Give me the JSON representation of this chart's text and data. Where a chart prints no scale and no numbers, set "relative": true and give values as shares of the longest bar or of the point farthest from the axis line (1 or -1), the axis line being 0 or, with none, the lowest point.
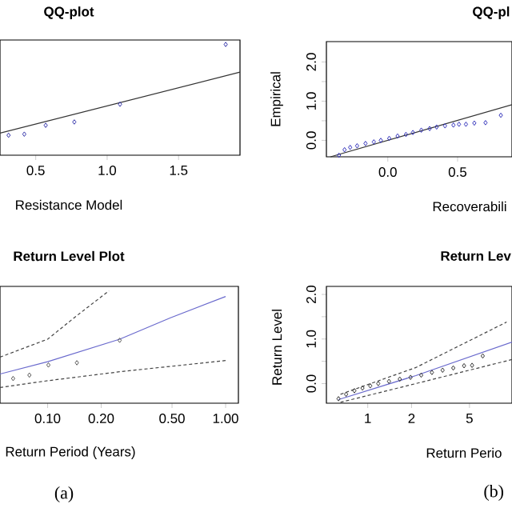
{
  "chart_data": [
    {
      "type": "scatter",
      "title": "QQ-plot",
      "xlabel": "Resistance Model",
      "relative": true,
      "xlim": [
        0.25,
        1.93
      ],
      "xticks": [
        {
          "value": 0.5,
          "label": "0.5"
        },
        {
          "value": 1.0,
          "label": "1.0"
        },
        {
          "value": 1.5,
          "label": "1.5"
        }
      ],
      "series": [
        {
          "color": "#3333aa",
          "marker": "diamond",
          "x": [
            0.31,
            0.42,
            0.57,
            0.77,
            1.09,
            1.83
          ],
          "values": [
            0.18,
            0.19,
            0.27,
            0.3,
            0.46,
            1
          ]
        },
        {
          "type": "line",
          "color": "#333333",
          "line_style": "solid",
          "x": [
            0.25,
            1.93
          ],
          "values": [
            0.2,
            0.75
          ]
        }
      ]
    },
    {
      "type": "scatter",
      "title": "QQ-pl",
      "xlabel": "Recoverabili",
      "ylabel": "Empirical",
      "xlim": [
        -0.44,
        0.89
      ],
      "ylim": [
        -0.42,
        2.52
      ],
      "xticks": [
        {
          "value": 0,
          "label": "0.0"
        },
        {
          "value": 0.5,
          "label": "0.5"
        }
      ],
      "yticks": [
        {
          "value": 0,
          "label": "0.0"
        },
        {
          "value": 0.5,
          "label": null
        },
        {
          "value": 1,
          "label": "1.0"
        },
        {
          "value": 1.5,
          "label": null
        },
        {
          "value": 2,
          "label": "2.0"
        }
      ],
      "series": [
        {
          "color": "#3333bb",
          "marker": "diamond",
          "x": [
            -0.35,
            -0.31,
            -0.27,
            -0.22,
            -0.16,
            -0.1,
            -0.05,
            0.01,
            0.07,
            0.13,
            0.18,
            0.24,
            0.3,
            0.35,
            0.41,
            0.47,
            0.51,
            0.56,
            0.62,
            0.7,
            0.81
          ],
          "values": [
            -0.38,
            -0.24,
            -0.18,
            -0.14,
            -0.08,
            -0.04,
            0.0,
            0.05,
            0.11,
            0.15,
            0.2,
            0.26,
            0.3,
            0.34,
            0.37,
            0.39,
            0.41,
            0.41,
            0.44,
            0.45,
            0.64
          ]
        },
        {
          "type": "line",
          "color": "#333333",
          "line_style": "solid",
          "x": [
            -0.41,
            0.89
          ],
          "values": [
            -0.42,
            0.91
          ]
        }
      ]
    },
    {
      "type": "line",
      "title": "Return Level Plot",
      "xlabel": "Return Period (Years)",
      "relative": true,
      "log": "x",
      "xlim": [
        0.054,
        1.18
      ],
      "xticks": [
        {
          "value": 0.1,
          "label": "0.10"
        },
        {
          "value": 0.2,
          "label": "0.20"
        },
        {
          "value": 0.5,
          "label": "0.50"
        },
        {
          "value": 1,
          "label": "1.00"
        }
      ],
      "annotations": [
        "(a)"
      ],
      "series": [
        {
          "type": "scatter",
          "color": "#555555",
          "marker": "diamond",
          "x": [
            0.064,
            0.079,
            0.101,
            0.146,
            0.254
          ],
          "values": [
            0.22,
            0.25,
            0.34,
            0.36,
            0.56
          ]
        },
        {
          "color": "#6a6acd",
          "line_style": "solid",
          "x": [
            0.054,
            0.1,
            0.254,
            0.49,
            1.0
          ],
          "values": [
            0.26,
            0.37,
            0.57,
            0.76,
            0.95
          ]
        },
        {
          "color": "#444444",
          "line_style": "dashed",
          "x": [
            0.054,
            0.1,
            0.146,
            0.221
          ],
          "values": [
            0.41,
            0.57,
            0.78,
            1
          ]
        },
        {
          "color": "#444444",
          "line_style": "dashed",
          "x": [
            0.054,
            0.1,
            0.254,
            1.0
          ],
          "values": [
            0.14,
            0.2,
            0.28,
            0.38
          ]
        }
      ]
    },
    {
      "type": "line",
      "title": "Return Lev",
      "xlabel": "Return Perio",
      "ylabel": "Return Level",
      "log": "x",
      "xlim": [
        0.52,
        9.8
      ],
      "ylim": [
        -0.44,
        2.18
      ],
      "xticks": [
        1,
        2,
        5
      ],
      "yticks": [
        {
          "value": 0,
          "label": "0.0"
        },
        {
          "value": 0.5,
          "label": null
        },
        {
          "value": 1,
          "label": "1.0"
        },
        {
          "value": 1.5,
          "label": null
        },
        {
          "value": 2,
          "label": "2.0"
        }
      ],
      "annotations": [
        "(b)"
      ],
      "series": [
        {
          "type": "scatter",
          "color": "#333333",
          "marker": "diamond",
          "x": [
            0.63,
            0.71,
            0.81,
            0.92,
            1.04,
            1.18,
            1.4,
            1.66,
            1.97,
            2.33,
            2.76,
            3.27,
            3.87,
            4.59,
            5.21,
            6.17
          ],
          "values": [
            -0.34,
            -0.24,
            -0.16,
            -0.1,
            -0.05,
            0.0,
            0.05,
            0.1,
            0.14,
            0.19,
            0.25,
            0.3,
            0.35,
            0.4,
            0.41,
            0.62
          ]
        },
        {
          "color": "#6a6acd",
          "line_style": "solid",
          "x": [
            0.63,
            2.14,
            9.8
          ],
          "values": [
            -0.36,
            0.18,
            0.93
          ]
        },
        {
          "color": "#444444",
          "line_style": "dashed",
          "x": [
            0.65,
            2.14,
            9.0
          ],
          "values": [
            -0.24,
            0.36,
            1.38
          ]
        },
        {
          "color": "#444444",
          "line_style": "dashed",
          "x": [
            0.65,
            2.14,
            9.8
          ],
          "values": [
            -0.42,
            0.0,
            0.54
          ]
        }
      ]
    }
  ]
}
